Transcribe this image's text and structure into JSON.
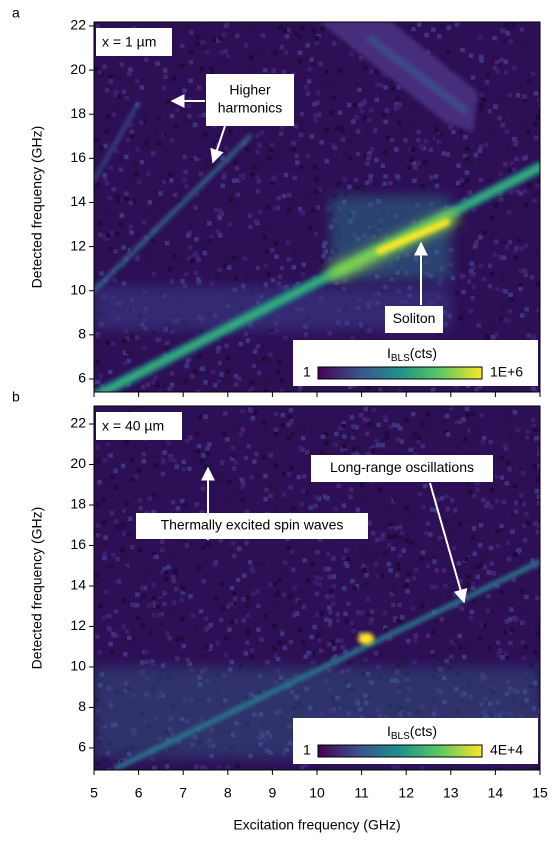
{
  "chart_data": [
    {
      "type": "heatmap",
      "panel_label": "a",
      "inset_label": "x = 1 µm",
      "xlim": [
        5,
        15
      ],
      "ylim": [
        5.41,
        22.18
      ],
      "xticks": [
        5,
        6,
        7,
        8,
        9,
        10,
        11,
        12,
        13,
        14,
        15
      ],
      "yticks": [
        6,
        8,
        10,
        12,
        14,
        16,
        18,
        20,
        22
      ],
      "ylabel": "Detected frequency (GHz)",
      "colorbar": {
        "label": "I",
        "label_sub": "BLS",
        "label_unit": "(cts)",
        "ticks": [
          1,
          {
            "value": 1000000,
            "label": "1E+6"
          }
        ]
      },
      "annotations": [
        {
          "text": [
            "Higher",
            "harmonics"
          ]
        },
        {
          "text": [
            "Soliton"
          ]
        }
      ]
    },
    {
      "type": "heatmap",
      "panel_label": "b",
      "inset_label": "x = 40 µm",
      "xlim": [
        5,
        15
      ],
      "ylim": [
        4.91,
        22.89
      ],
      "xticks": [
        5,
        6,
        7,
        8,
        9,
        10,
        11,
        12,
        13,
        14,
        15
      ],
      "yticks": [
        6,
        8,
        10,
        12,
        14,
        16,
        18,
        20,
        22
      ],
      "xlabel": "Excitation frequency (GHz)",
      "ylabel": "Detected frequency (GHz)",
      "colorbar": {
        "label": "I",
        "label_sub": "BLS",
        "label_unit": "(cts)",
        "ticks": [
          1,
          {
            "value": 40000,
            "label": "4E+4"
          }
        ]
      },
      "annotations": [
        {
          "text": [
            "Thermally excited spin waves"
          ]
        },
        {
          "text": [
            "Long-range oscillations"
          ]
        }
      ]
    }
  ]
}
